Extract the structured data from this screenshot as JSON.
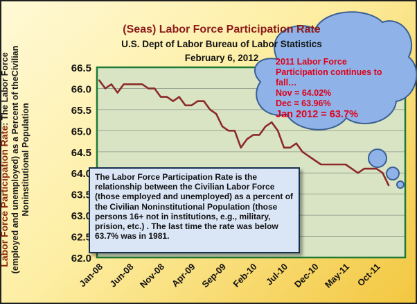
{
  "chart_data": {
    "type": "line",
    "title": "(Seas) Labor Force Participation Rate",
    "subtitle": "U.S. Dept of Labor Bureau of Labor Statistics",
    "date": "February 6, 2012",
    "ylabel_highlight": "Labor Force Participation Rate",
    "ylabel_rest": ": The Labor Force (employed and unemployed) as a Percent of theCivilian Noninstitutional Population",
    "ylim": [
      62.0,
      66.5
    ],
    "yticks": [
      "62.0",
      "62.5",
      "63.0",
      "63.5",
      "64.0",
      "64.5",
      "65.0",
      "65.5",
      "66.0",
      "66.5"
    ],
    "xtick_labels": [
      "Jan-08",
      "Jun-08",
      "Nov-08",
      "Apr-09",
      "Sep-09",
      "Feb-10",
      "Jul-10",
      "Dec-10",
      "May-11",
      "Oct-11"
    ],
    "grid": "horizontal",
    "line_color": "#8b2a2a",
    "plot_background": "#d9e4c4",
    "series": [
      {
        "values": [
          66.2,
          66.0,
          66.1,
          65.9,
          66.1,
          66.1,
          66.1,
          66.1,
          66.0,
          66.0,
          65.8,
          65.8,
          65.7,
          65.8,
          65.6,
          65.6,
          65.7,
          65.7,
          65.5,
          65.4,
          65.1,
          65.0,
          65.0,
          64.6,
          64.8,
          64.9,
          64.9,
          65.1,
          65.2,
          65.0,
          64.6,
          64.6,
          64.7,
          64.5,
          64.4,
          64.3,
          64.2,
          64.2,
          64.2,
          64.2,
          64.2,
          64.1,
          64.0,
          64.1,
          64.1,
          64.1,
          64.0,
          63.7
        ]
      }
    ]
  },
  "note": "The Labor Force Participation Rate is the relationship between the Civilian Labor Force (those employed and unemployed) as a percent of the Civilian Noninstitutional Population (those persons 16+ not in institutions, e.g., military, prision, etc.) . The last time the rate was below 63.7% was in 1981.",
  "callout": {
    "line1": "2011 Labor Force Participation continues to fall…",
    "line2": "Nov = 64.02%",
    "line3": "Dec = 63.96%",
    "line4": "Jan 2012 = 63.7%"
  },
  "colors": {
    "title": "#8b1a1a",
    "callout_text": "#e0001a",
    "cloud_fill": "#8fb3e8",
    "plot_border": "#1d7a35"
  }
}
